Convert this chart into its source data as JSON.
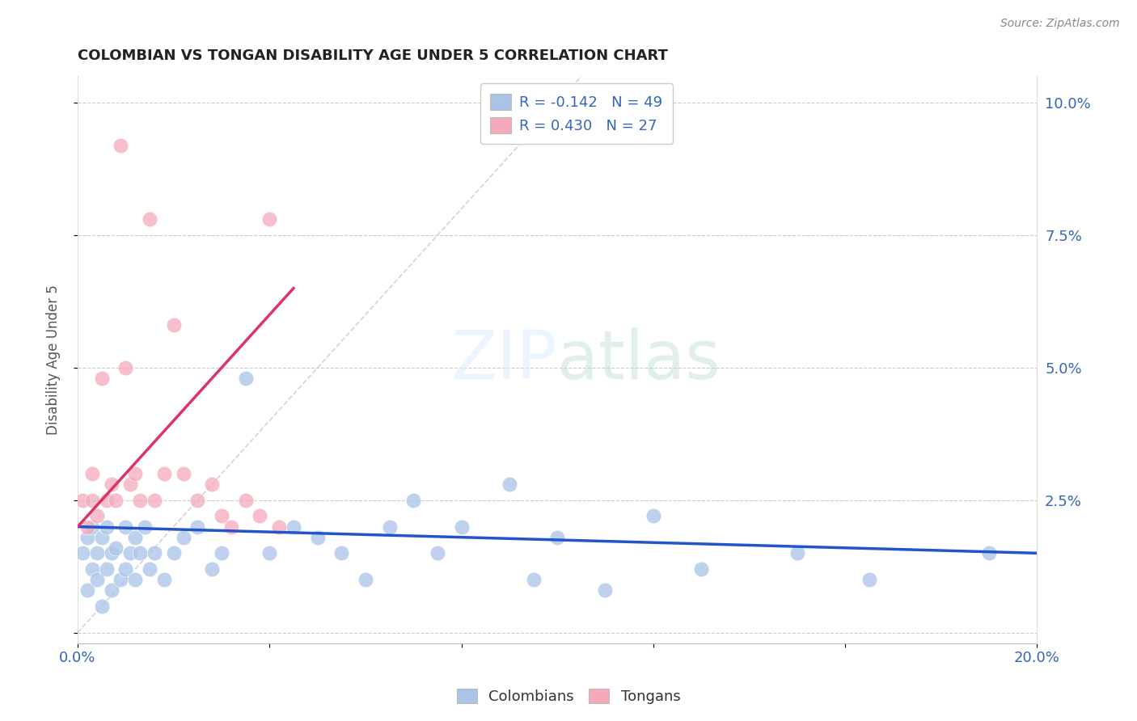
{
  "title": "COLOMBIAN VS TONGAN DISABILITY AGE UNDER 5 CORRELATION CHART",
  "source": "Source: ZipAtlas.com",
  "ylabel": "Disability Age Under 5",
  "xlim": [
    0.0,
    0.2
  ],
  "ylim": [
    -0.002,
    0.105
  ],
  "xticks": [
    0.0,
    0.04,
    0.08,
    0.12,
    0.16,
    0.2
  ],
  "yticks": [
    0.0,
    0.025,
    0.05,
    0.075,
    0.1
  ],
  "ytick_labels_right": [
    "",
    "2.5%",
    "5.0%",
    "7.5%",
    "10.0%"
  ],
  "xtick_labels": [
    "0.0%",
    "",
    "",
    "",
    "",
    "20.0%"
  ],
  "colombian_color": "#aac4e8",
  "tongan_color": "#f5aabb",
  "colombian_line_color": "#2255cc",
  "tongan_line_color": "#dd3366",
  "diagonal_color": "#ccbbcc",
  "R_colombian": -0.142,
  "N_colombian": 49,
  "R_tongan": 0.43,
  "N_tongan": 27,
  "colombians_x": [
    0.001,
    0.002,
    0.002,
    0.003,
    0.003,
    0.004,
    0.004,
    0.005,
    0.005,
    0.006,
    0.006,
    0.007,
    0.007,
    0.008,
    0.009,
    0.01,
    0.01,
    0.011,
    0.012,
    0.012,
    0.013,
    0.014,
    0.015,
    0.016,
    0.018,
    0.02,
    0.022,
    0.025,
    0.028,
    0.03,
    0.035,
    0.04,
    0.045,
    0.05,
    0.055,
    0.06,
    0.065,
    0.07,
    0.075,
    0.08,
    0.09,
    0.095,
    0.1,
    0.11,
    0.12,
    0.13,
    0.15,
    0.165,
    0.19
  ],
  "colombians_y": [
    0.015,
    0.008,
    0.018,
    0.012,
    0.02,
    0.015,
    0.01,
    0.018,
    0.005,
    0.02,
    0.012,
    0.015,
    0.008,
    0.016,
    0.01,
    0.02,
    0.012,
    0.015,
    0.018,
    0.01,
    0.015,
    0.02,
    0.012,
    0.015,
    0.01,
    0.015,
    0.018,
    0.02,
    0.012,
    0.015,
    0.048,
    0.015,
    0.02,
    0.018,
    0.015,
    0.01,
    0.02,
    0.025,
    0.015,
    0.02,
    0.028,
    0.01,
    0.018,
    0.008,
    0.022,
    0.012,
    0.015,
    0.01,
    0.015
  ],
  "tongans_x": [
    0.001,
    0.002,
    0.003,
    0.003,
    0.004,
    0.005,
    0.006,
    0.007,
    0.008,
    0.009,
    0.01,
    0.011,
    0.012,
    0.013,
    0.015,
    0.016,
    0.018,
    0.02,
    0.022,
    0.025,
    0.028,
    0.03,
    0.032,
    0.035,
    0.038,
    0.04,
    0.042
  ],
  "tongans_y": [
    0.025,
    0.02,
    0.03,
    0.025,
    0.022,
    0.048,
    0.025,
    0.028,
    0.025,
    0.092,
    0.05,
    0.028,
    0.03,
    0.025,
    0.078,
    0.025,
    0.03,
    0.058,
    0.03,
    0.025,
    0.028,
    0.022,
    0.02,
    0.025,
    0.022,
    0.078,
    0.02
  ]
}
